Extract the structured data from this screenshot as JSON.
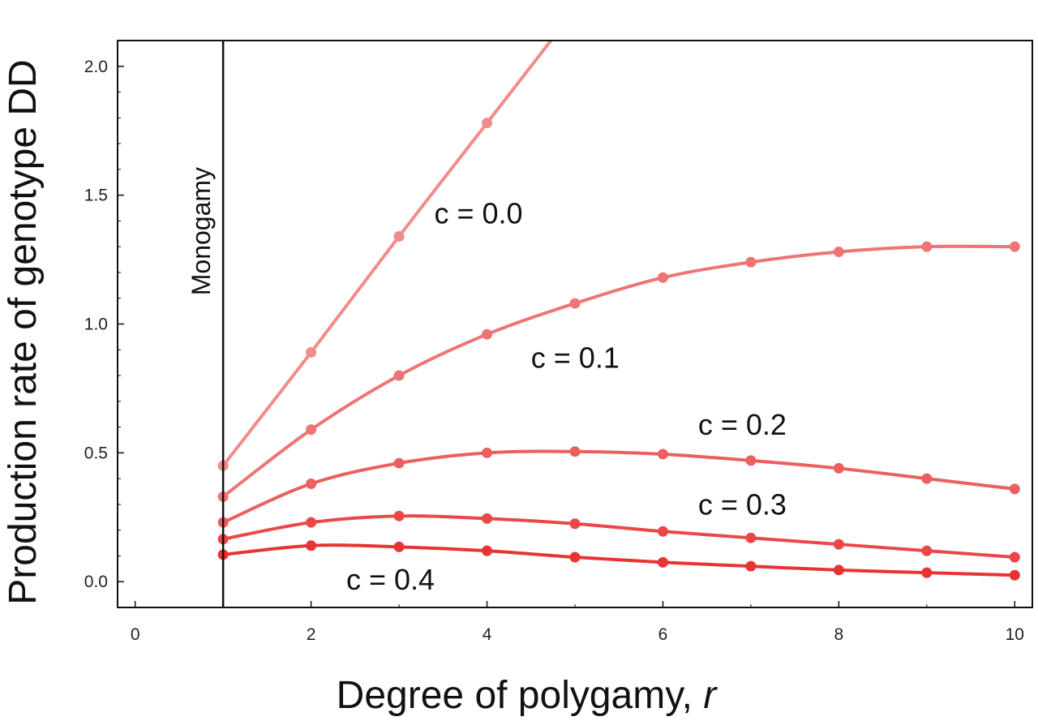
{
  "chart_data": {
    "type": "line",
    "xlabel": "Degree of polygamy, ",
    "xlabel_var": "r",
    "ylabel": "Production rate of genotype DD",
    "xlim": [
      -0.2,
      10.2
    ],
    "ylim": [
      -0.1,
      2.1
    ],
    "xticks": [
      0,
      2,
      4,
      6,
      8,
      10
    ],
    "yticks": [
      0.0,
      0.5,
      1.0,
      1.5,
      2.0
    ],
    "ytick_labels": [
      "0.0",
      "0.5",
      "1.0",
      "1.5",
      "2.0"
    ],
    "grid": false,
    "reference_line": {
      "x": 1,
      "label": "Monogamy"
    },
    "series": [
      {
        "name": "c = 0.0",
        "color": "#f28b8b",
        "x": [
          1,
          2,
          3,
          4,
          4.75
        ],
        "y": [
          0.45,
          0.89,
          1.34,
          1.78,
          2.11
        ],
        "marker_x": [
          1,
          2,
          3,
          4
        ]
      },
      {
        "name": "c = 0.1",
        "color": "#ef7474",
        "x": [
          1,
          2,
          3,
          4,
          5,
          6,
          7,
          8,
          9,
          10
        ],
        "y": [
          0.33,
          0.59,
          0.8,
          0.96,
          1.08,
          1.18,
          1.24,
          1.28,
          1.3,
          1.3
        ],
        "marker_x": [
          1,
          2,
          3,
          4,
          5,
          6,
          7,
          8,
          9,
          10
        ]
      },
      {
        "name": "c = 0.2",
        "color": "#ec5f5f",
        "x": [
          1,
          2,
          3,
          4,
          5,
          6,
          7,
          8,
          9,
          10
        ],
        "y": [
          0.23,
          0.38,
          0.46,
          0.5,
          0.505,
          0.495,
          0.47,
          0.44,
          0.4,
          0.36
        ],
        "marker_x": [
          1,
          2,
          3,
          4,
          5,
          6,
          7,
          8,
          9,
          10
        ]
      },
      {
        "name": "c = 0.3",
        "color": "#ea4848",
        "x": [
          1,
          2,
          3,
          4,
          5,
          6,
          7,
          8,
          9,
          10
        ],
        "y": [
          0.165,
          0.23,
          0.255,
          0.245,
          0.225,
          0.195,
          0.17,
          0.145,
          0.12,
          0.095
        ],
        "marker_x": [
          1,
          2,
          3,
          4,
          5,
          6,
          7,
          8,
          9,
          10
        ]
      },
      {
        "name": "c = 0.4",
        "color": "#e83333",
        "x": [
          1,
          2,
          3,
          4,
          5,
          6,
          7,
          8,
          9,
          10
        ],
        "y": [
          0.105,
          0.14,
          0.135,
          0.12,
          0.095,
          0.075,
          0.06,
          0.045,
          0.035,
          0.025
        ],
        "marker_x": [
          1,
          2,
          3,
          4,
          5,
          6,
          7,
          8,
          9,
          10
        ]
      }
    ],
    "annotations": [
      {
        "text": "c = 0.0",
        "x": 3.4,
        "y": 1.39
      },
      {
        "text": "c = 0.1",
        "x": 4.5,
        "y": 0.83
      },
      {
        "text": "c = 0.2",
        "x": 6.4,
        "y": 0.57
      },
      {
        "text": "c = 0.3",
        "x": 6.4,
        "y": 0.26
      },
      {
        "text": "c = 0.4",
        "x": 2.4,
        "y": -0.03
      }
    ]
  }
}
